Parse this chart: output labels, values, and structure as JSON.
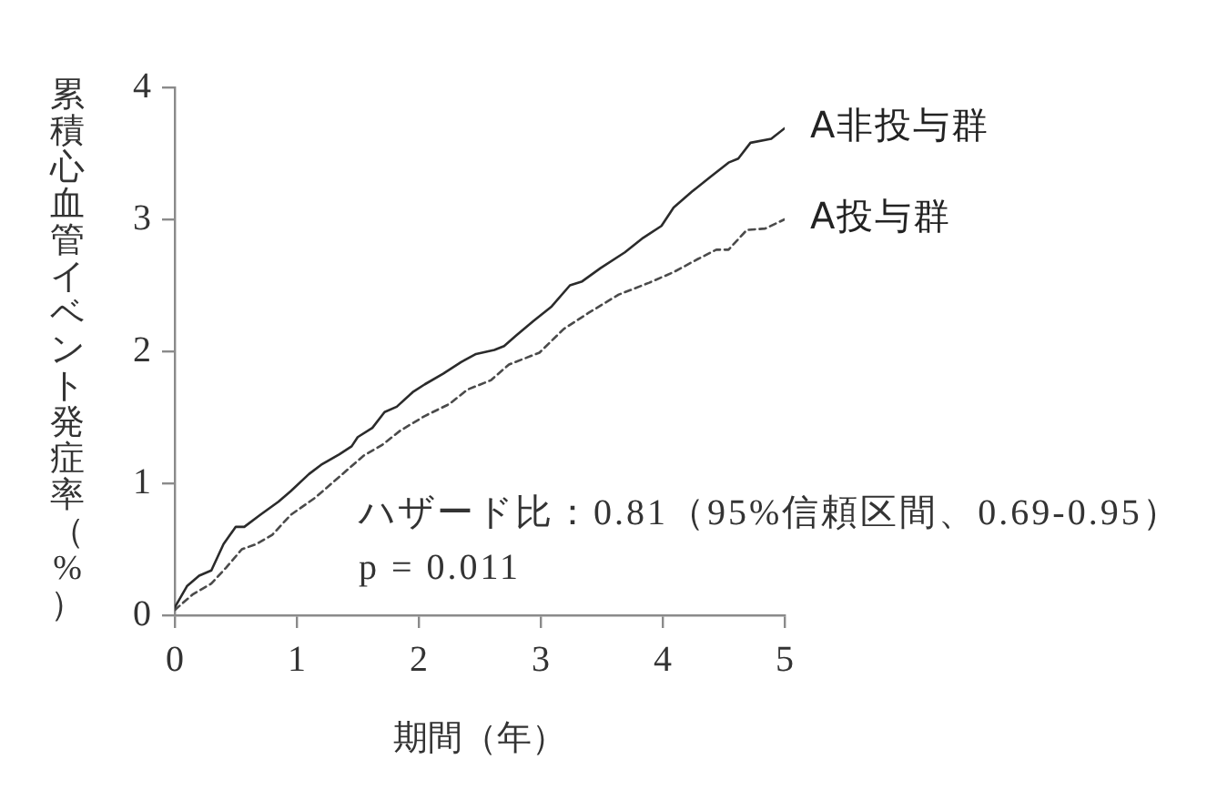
{
  "chart_data": {
    "type": "line",
    "xlabel": "期間（年）",
    "ylabel": "累積心血管イベント発症率（%）",
    "annotations": [
      "ハザード比：0.81（95%信頼区間、0.69-0.95）",
      "p = 0.011"
    ],
    "xlim": [
      0,
      5
    ],
    "ylim": [
      0,
      4
    ],
    "xticks": [
      0,
      1,
      2,
      3,
      4,
      5
    ],
    "yticks": [
      0,
      1,
      2,
      3,
      4
    ],
    "marker": "none",
    "series": [
      {
        "name": "A非投与群",
        "color": "#2b2b2b",
        "line_style": "solid",
        "x": [
          0,
          0.1,
          0.2,
          0.3,
          0.4,
          0.5,
          0.57,
          0.7,
          0.85,
          0.95,
          1.1,
          1.2,
          1.35,
          1.45,
          1.5,
          1.62,
          1.72,
          1.82,
          1.95,
          2.05,
          2.2,
          2.35,
          2.47,
          2.62,
          2.7,
          2.8,
          2.94,
          3.09,
          3.24,
          3.34,
          3.49,
          3.69,
          3.84,
          3.99,
          4.09,
          4.24,
          4.39,
          4.54,
          4.62,
          4.72,
          4.89,
          5.0
        ],
        "values": [
          0.06,
          0.22,
          0.3,
          0.34,
          0.54,
          0.67,
          0.67,
          0.76,
          0.86,
          0.94,
          1.07,
          1.14,
          1.22,
          1.28,
          1.35,
          1.42,
          1.54,
          1.58,
          1.69,
          1.75,
          1.83,
          1.92,
          1.98,
          2.01,
          2.04,
          2.12,
          2.23,
          2.34,
          2.5,
          2.53,
          2.63,
          2.75,
          2.86,
          2.95,
          3.09,
          3.21,
          3.32,
          3.43,
          3.46,
          3.58,
          3.61,
          3.69
        ]
      },
      {
        "name": "A投与群",
        "color": "#4a4a4a",
        "line_style": "dashed",
        "x": [
          0,
          0.15,
          0.3,
          0.42,
          0.55,
          0.67,
          0.8,
          0.95,
          1.15,
          1.35,
          1.55,
          1.7,
          1.85,
          2.05,
          2.25,
          2.4,
          2.59,
          2.74,
          2.99,
          3.19,
          3.39,
          3.64,
          3.89,
          4.09,
          4.29,
          4.44,
          4.54,
          4.69,
          4.84,
          5.0
        ],
        "values": [
          0.04,
          0.16,
          0.24,
          0.36,
          0.5,
          0.54,
          0.61,
          0.76,
          0.89,
          1.05,
          1.21,
          1.29,
          1.4,
          1.51,
          1.6,
          1.71,
          1.78,
          1.9,
          1.99,
          2.17,
          2.29,
          2.43,
          2.52,
          2.6,
          2.7,
          2.77,
          2.77,
          2.92,
          2.93,
          3.0
        ]
      }
    ]
  }
}
